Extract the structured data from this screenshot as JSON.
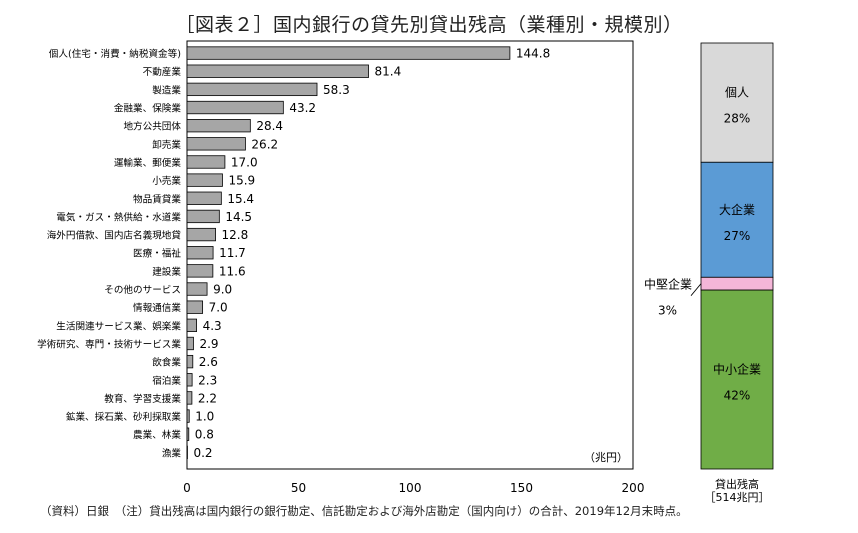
{
  "title": "［図表２］国内銀行の貸先別貸出残高（業種別・規模別）",
  "footnote": "（資料）日銀　（注）貸出残高は国内銀行の銀行勘定、信託勘定および海外店勘定（国内向け）の合計、2019年12月末時点。",
  "chart_data": [
    {
      "type": "bar",
      "orientation": "horizontal",
      "unit_label": "（兆円）",
      "categories": [
        "個人(住宅・消費・納税資金等)",
        "不動産業",
        "製造業",
        "金融業、保険業",
        "地方公共団体",
        "卸売業",
        "運輸業、郵便業",
        "小売業",
        "物品賃貸業",
        "電気・ガス・熱供給・水道業",
        "海外円借款、国内店名義現地貸",
        "医療・福祉",
        "建設業",
        "その他のサービス",
        "情報通信業",
        "生活関連サービス業、娯楽業",
        "学術研究、専門・技術サービス業",
        "飲食業",
        "宿泊業",
        "教育、学習支援業",
        "鉱業、採石業、砂利採取業",
        "農業、林業",
        "漁業"
      ],
      "values": [
        144.8,
        81.4,
        58.3,
        43.2,
        28.4,
        26.2,
        17.0,
        15.9,
        15.4,
        14.5,
        12.8,
        11.7,
        11.6,
        9.0,
        7.0,
        4.3,
        2.9,
        2.6,
        2.3,
        2.2,
        1.0,
        0.8,
        0.2
      ],
      "value_labels": [
        "144.8",
        "81.4",
        "58.3",
        "43.2",
        "28.4",
        "26.2",
        "17.0",
        "15.9",
        "15.4",
        "14.5",
        "12.8",
        "11.7",
        "11.6",
        "9.0",
        "7.0",
        "4.3",
        "2.9",
        "2.6",
        "2.3",
        "2.2",
        "1.0",
        "0.8",
        "0.2"
      ],
      "xlim": [
        0,
        200
      ],
      "xticks": [
        "0",
        "50",
        "100",
        "150",
        "200"
      ],
      "bar_color": "#a6a6a6",
      "grid": false
    },
    {
      "type": "stacked-bar",
      "category_label": "貸出残高",
      "total_label": "［514兆円］",
      "segments": [
        {
          "name": "個人",
          "percent": 28,
          "percent_label": "28%",
          "color": "#d9d9d9"
        },
        {
          "name": "大企業",
          "percent": 27,
          "percent_label": "27%",
          "color": "#5b9bd5"
        },
        {
          "name": "中堅企業",
          "percent": 3,
          "percent_label": "3%",
          "color": "#f4b6d8"
        },
        {
          "name": "中小企業",
          "percent": 42,
          "percent_label": "42%",
          "color": "#70ad47"
        }
      ]
    }
  ]
}
